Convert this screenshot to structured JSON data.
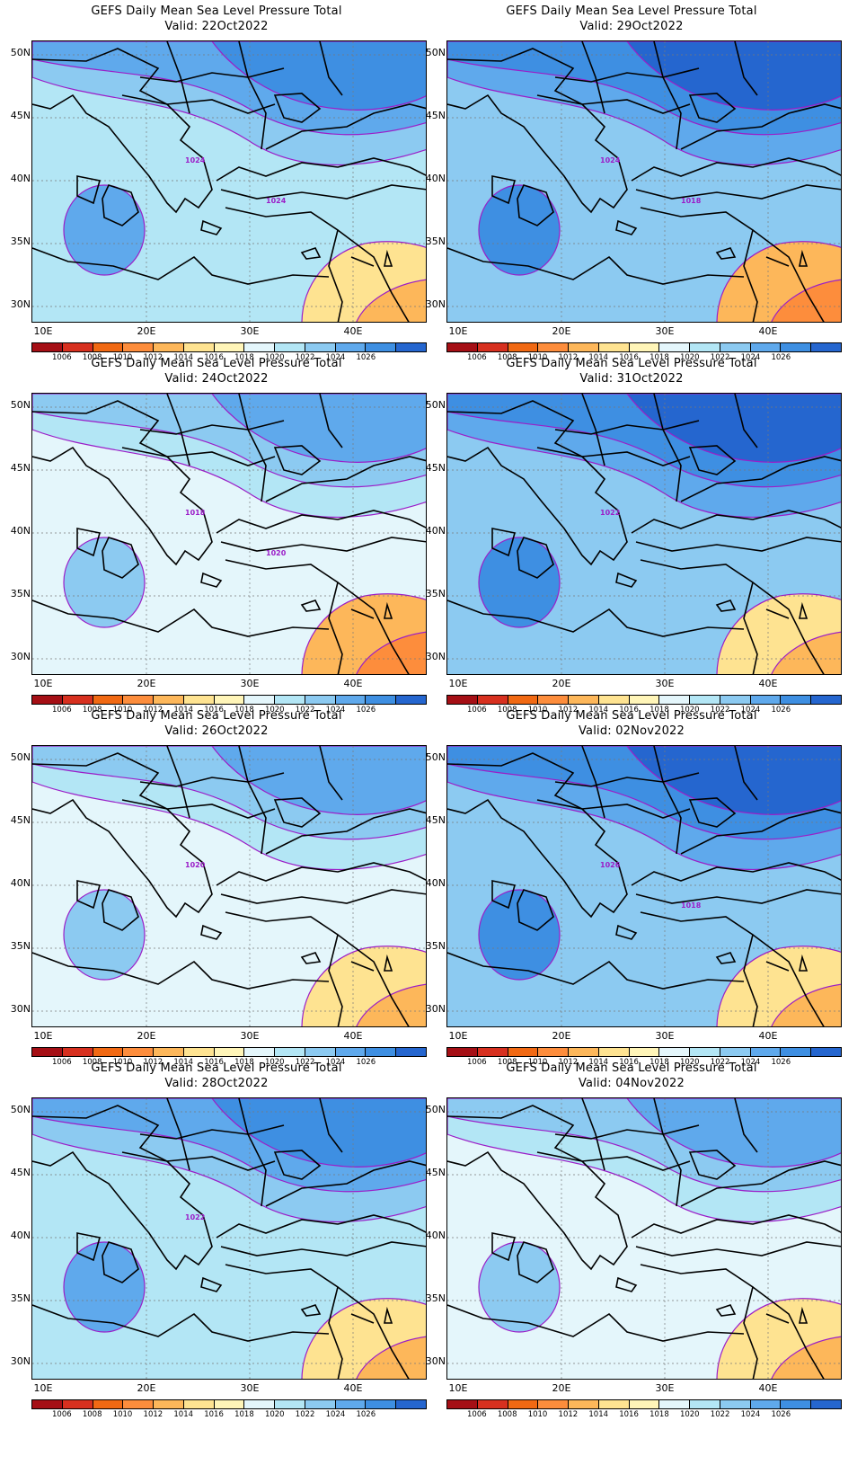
{
  "title": "GEFS Daily Mean Sea Level Pressure Total",
  "valid_prefix": "Valid:",
  "lat_labels": [
    "50N",
    "45N",
    "40N",
    "35N",
    "30N"
  ],
  "lon_labels": [
    "10E",
    "20E",
    "30E",
    "40E"
  ],
  "legend": {
    "labels": [
      "1006",
      "1008",
      "1010",
      "1012",
      "1014",
      "1016",
      "1018",
      "1020",
      "1022",
      "1024",
      "1026"
    ],
    "colors": [
      "#a50f15",
      "#d7301f",
      "#f16913",
      "#fd8d3c",
      "#fdb75a",
      "#fee391",
      "#fff5b8",
      "#e4f6fb",
      "#b3e6f5",
      "#8ccaf1",
      "#5fa9ec",
      "#3e8fe2",
      "#2566cf"
    ]
  },
  "contour_color": "#9b1ec8",
  "coast_color": "#000000",
  "panels": [
    {
      "valid": "22Oct2022",
      "order": [
        "b3e6f5",
        "8ccaf1",
        "5fa9ec",
        "3e8fe2",
        "2566cf"
      ],
      "labels": [
        "1024",
        "1024"
      ],
      "warm": "#fee391"
    },
    {
      "valid": "29Oct2022",
      "order": [
        "8ccaf1",
        "5fa9ec",
        "3e8fe2",
        "2566cf"
      ],
      "labels": [
        "1024",
        "1018"
      ],
      "warm": "#fdb75a"
    },
    {
      "valid": "24Oct2022",
      "order": [
        "e4f6fb",
        "b3e6f5",
        "8ccaf1",
        "5fa9ec"
      ],
      "labels": [
        "1018",
        "1020"
      ],
      "warm": "#fdb75a"
    },
    {
      "valid": "31Oct2022",
      "order": [
        "8ccaf1",
        "5fa9ec",
        "3e8fe2",
        "2566cf"
      ],
      "labels": [
        "1022"
      ],
      "warm": "#fee391"
    },
    {
      "valid": "26Oct2022",
      "order": [
        "e4f6fb",
        "b3e6f5",
        "8ccaf1",
        "5fa9ec"
      ],
      "labels": [
        "1020"
      ],
      "warm": "#fee391"
    },
    {
      "valid": "02Nov2022",
      "order": [
        "8ccaf1",
        "5fa9ec",
        "3e8fe2",
        "2566cf"
      ],
      "labels": [
        "1026",
        "1018"
      ],
      "warm": "#fee391"
    },
    {
      "valid": "28Oct2022",
      "order": [
        "b3e6f5",
        "8ccaf1",
        "5fa9ec",
        "3e8fe2"
      ],
      "labels": [
        "1022"
      ],
      "warm": "#fee391"
    },
    {
      "valid": "04Nov2022",
      "order": [
        "e4f6fb",
        "b3e6f5",
        "8ccaf1",
        "5fa9ec"
      ],
      "labels": [],
      "warm": "#fee391"
    }
  ]
}
